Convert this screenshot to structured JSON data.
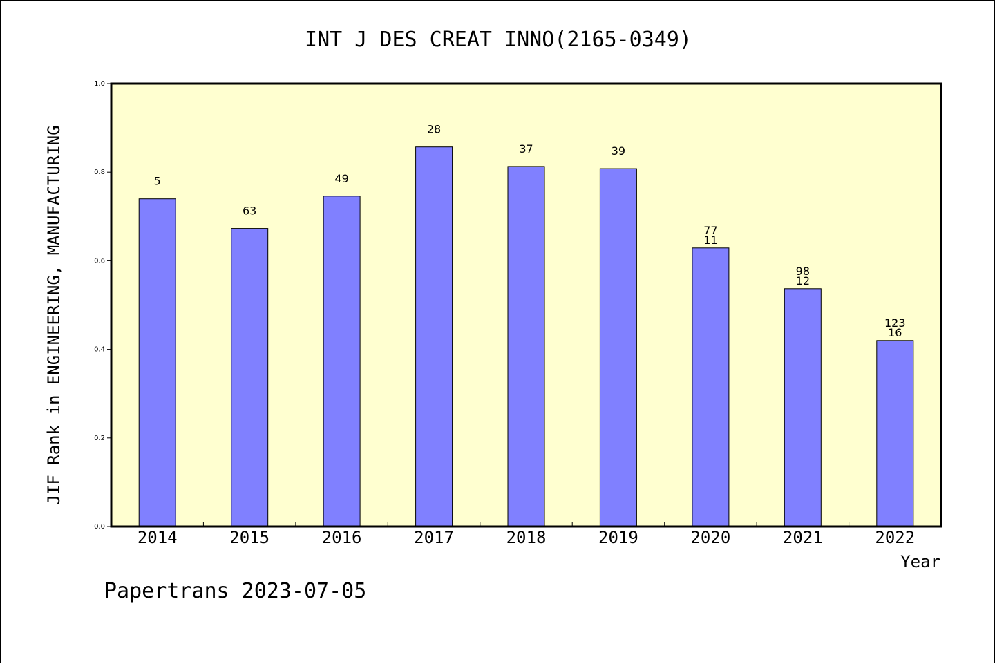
{
  "chart_data": {
    "type": "bar",
    "title": "INT J DES CREAT INNO(2165-0349)",
    "ylabel": "JIF Rank in ENGINEERING, MANUFACTURING",
    "xlabel": "Year",
    "ylim": [
      0.0,
      1.0
    ],
    "yticks": [
      "0.0",
      "0.2",
      "0.4",
      "0.6",
      "0.8",
      "1.0"
    ],
    "categories": [
      "2014",
      "2015",
      "2016",
      "2017",
      "2018",
      "2019",
      "2020",
      "2021",
      "2022"
    ],
    "values": [
      0.74,
      0.673,
      0.746,
      0.857,
      0.813,
      0.808,
      0.629,
      0.537,
      0.42
    ],
    "bar_labels_top": [
      "5",
      "63",
      "49",
      "28",
      "37",
      "39",
      "77",
      "98",
      "123"
    ],
    "bar_labels_bottom": [
      "",
      "",
      "",
      "",
      "",
      "",
      "11",
      "12",
      "16"
    ],
    "plot_background": "#ffffd0",
    "bar_color": "#8080ff",
    "grid": false,
    "legend": "none"
  },
  "footer": "Papertrans 2023-07-05"
}
